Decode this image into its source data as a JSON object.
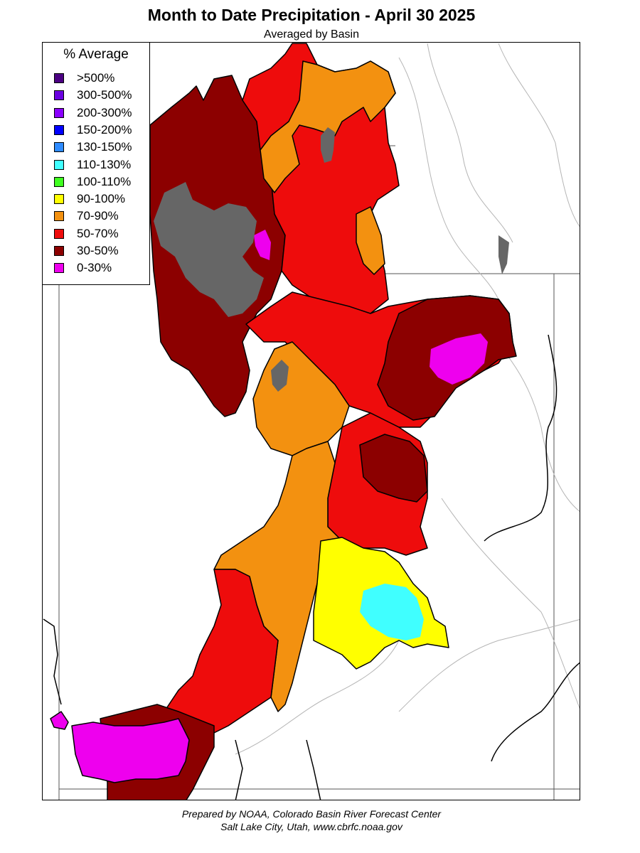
{
  "title": "Month to Date Precipitation - April 30 2025",
  "subtitle": "Averaged by Basin",
  "legend": {
    "title": "% Average",
    "items": [
      {
        "label": ">500%",
        "color": "#4b0082"
      },
      {
        "label": "300-500%",
        "color": "#6a00e0"
      },
      {
        "label": "200-300%",
        "color": "#8a00ff"
      },
      {
        "label": "150-200%",
        "color": "#0000ff"
      },
      {
        "label": "130-150%",
        "color": "#2e8bff"
      },
      {
        "label": "110-130%",
        "color": "#40ffff"
      },
      {
        "label": "100-110%",
        "color": "#40ff20"
      },
      {
        "label": "90-100%",
        "color": "#ffff00"
      },
      {
        "label": "70-90%",
        "color": "#f39110"
      },
      {
        "label": "50-70%",
        "color": "#ee0c0c"
      },
      {
        "label": "30-50%",
        "color": "#8c0000"
      },
      {
        "label": "0-30%",
        "color": "#ee00ee"
      }
    ]
  },
  "colors": {
    "no_data": "#666666",
    "boundary": "#000000",
    "river": "#aaaaaa"
  },
  "footer": {
    "line1": "Prepared by NOAA, Colorado Basin River Forecast Center",
    "line2": "Salt Lake City, Utah, www.cbrfc.noaa.gov"
  }
}
